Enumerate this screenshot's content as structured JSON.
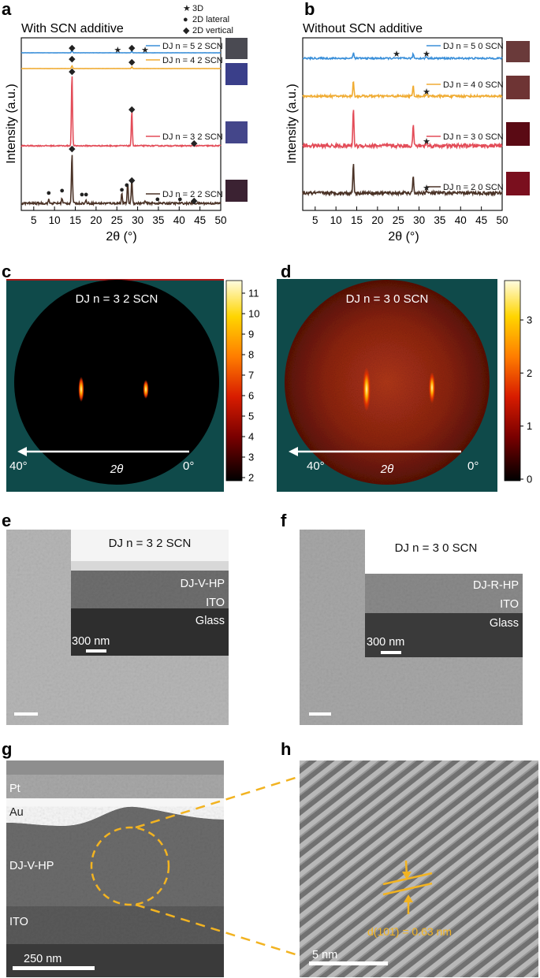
{
  "panels": {
    "a": {
      "label": "a",
      "title": "With SCN additive"
    },
    "b": {
      "label": "b",
      "title": "Without SCN additive"
    },
    "c": {
      "label": "c",
      "title": "DJ n = 3 2 SCN",
      "angle_left": "40°",
      "angle_right": "0°",
      "axis": "2θ",
      "colorbar_ticks": [
        "11",
        "10",
        "9",
        "8",
        "7",
        "6",
        "5",
        "4",
        "3",
        "2"
      ]
    },
    "d": {
      "label": "d",
      "title": "DJ n = 3 0 SCN",
      "angle_left": "40°",
      "angle_right": "0°",
      "axis": "2θ",
      "colorbar_ticks": [
        "3",
        "2",
        "1",
        "0"
      ]
    },
    "e": {
      "label": "e",
      "title": "DJ n = 3 2 SCN",
      "layers": [
        "DJ-V-HP",
        "ITO",
        "Glass"
      ],
      "scale": "300 nm"
    },
    "f": {
      "label": "f",
      "title": "DJ n = 3 0 SCN",
      "layers": [
        "DJ-R-HP",
        "ITO",
        "Glass"
      ],
      "scale": "300 nm"
    },
    "g": {
      "label": "g",
      "layers": [
        "Pt",
        "Au",
        "DJ-V-HP",
        "ITO"
      ],
      "scale": "250 nm"
    },
    "h": {
      "label": "h",
      "d_spacing": "d(101̄) = 0.63 nm",
      "scale": "5 nm"
    }
  },
  "markers_legend": [
    {
      "symbol": "★",
      "name": "3D"
    },
    {
      "symbol": "●",
      "name": "2D lateral"
    },
    {
      "symbol": "◆",
      "name": "2D vertical"
    }
  ],
  "chart_data": [
    {
      "type": "line",
      "panel": "a",
      "title": "With SCN additive",
      "xlabel": "2θ (°)",
      "ylabel": "Intensity (a.u.)",
      "xlim": [
        2,
        50
      ],
      "xticks": [
        "5",
        "10",
        "15",
        "20",
        "25",
        "30",
        "35",
        "40",
        "45",
        "50"
      ],
      "series": [
        {
          "name": "DJ n = 5 2 SCN",
          "color": "#3a8fd9",
          "peaks": [
            [
              14.2,
              0.25
            ],
            [
              28.6,
              0.15
            ]
          ]
        },
        {
          "name": "DJ n = 4 2 SCN",
          "color": "#f0ac33",
          "peaks": [
            [
              14.2,
              0.25
            ],
            [
              28.6,
              0.15
            ]
          ]
        },
        {
          "name": "DJ n = 3 2 SCN",
          "color": "#e34c58",
          "peaks": [
            [
              14.2,
              1.0
            ],
            [
              28.6,
              0.48
            ]
          ]
        },
        {
          "name": "DJ n = 2 2 SCN",
          "color": "#4a3226",
          "peaks": [
            [
              8.6,
              0.05
            ],
            [
              11.8,
              0.07
            ],
            [
              14.2,
              0.7
            ],
            [
              17.6,
              0.04
            ],
            [
              26.2,
              0.14
            ],
            [
              27.6,
              0.28
            ],
            [
              28.6,
              0.36
            ],
            [
              31.8,
              0.03
            ]
          ]
        }
      ]
    },
    {
      "type": "line",
      "panel": "b",
      "title": "Without SCN additive",
      "xlabel": "2θ (°)",
      "ylabel": "Intensity (a.u.)",
      "xlim": [
        2,
        50
      ],
      "xticks": [
        "5",
        "10",
        "15",
        "20",
        "25",
        "30",
        "35",
        "40",
        "45",
        "50"
      ],
      "series": [
        {
          "name": "DJ n = 5 0 SCN",
          "color": "#3a8fd9",
          "peaks": [
            [
              14.2,
              0.25
            ],
            [
              28.6,
              0.2
            ],
            [
              31.8,
              0.08
            ]
          ]
        },
        {
          "name": "DJ n = 4 0 SCN",
          "color": "#f0ac33",
          "peaks": [
            [
              14.2,
              0.5
            ],
            [
              28.6,
              0.35
            ],
            [
              31.8,
              0.1
            ]
          ]
        },
        {
          "name": "DJ n = 3 0 SCN",
          "color": "#e34c58",
          "peaks": [
            [
              14.2,
              0.7
            ],
            [
              28.6,
              0.4
            ],
            [
              31.8,
              0.1
            ]
          ]
        },
        {
          "name": "DJ n = 2 0 SCN",
          "color": "#4a3226",
          "peaks": [
            [
              14.2,
              0.65
            ],
            [
              28.6,
              0.35
            ],
            [
              31.8,
              0.06
            ]
          ]
        }
      ]
    }
  ]
}
